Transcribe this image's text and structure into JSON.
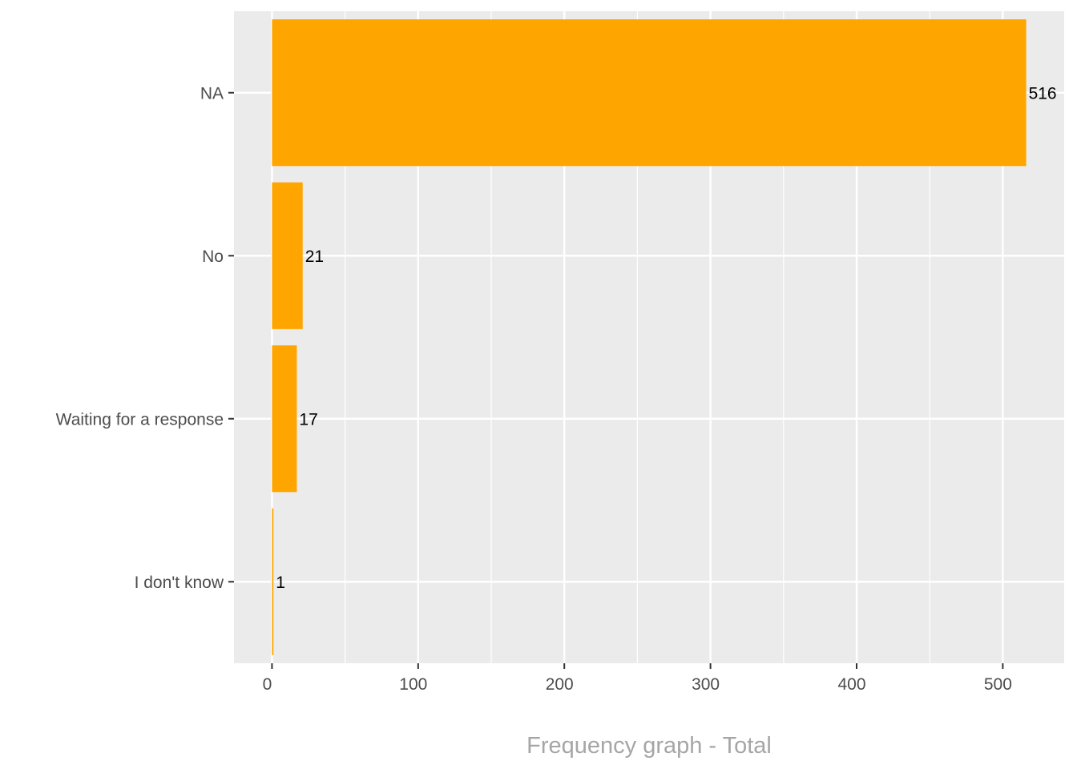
{
  "chart_data": {
    "type": "bar",
    "orientation": "horizontal",
    "categories": [
      "NA",
      "No",
      "Waiting for a response",
      "I don't know"
    ],
    "values": [
      516,
      21,
      17,
      1
    ],
    "data_labels": [
      "516",
      "21",
      "17",
      "1"
    ],
    "xlabel": "Frequency graph - Total",
    "xlim": [
      -26,
      542
    ],
    "xticks": [
      0,
      100,
      200,
      300,
      400,
      500
    ],
    "xtick_labels": [
      "0",
      "100",
      "200",
      "300",
      "400",
      "500"
    ],
    "grid": true,
    "legend": "none",
    "colors": {
      "bar": "#FFA500",
      "panel": "#EBEBEB",
      "grid": "#FFFFFF",
      "axis_title": "#A6A6A6",
      "tick_text": "#4D4D4D",
      "data_label": "#000000"
    }
  }
}
